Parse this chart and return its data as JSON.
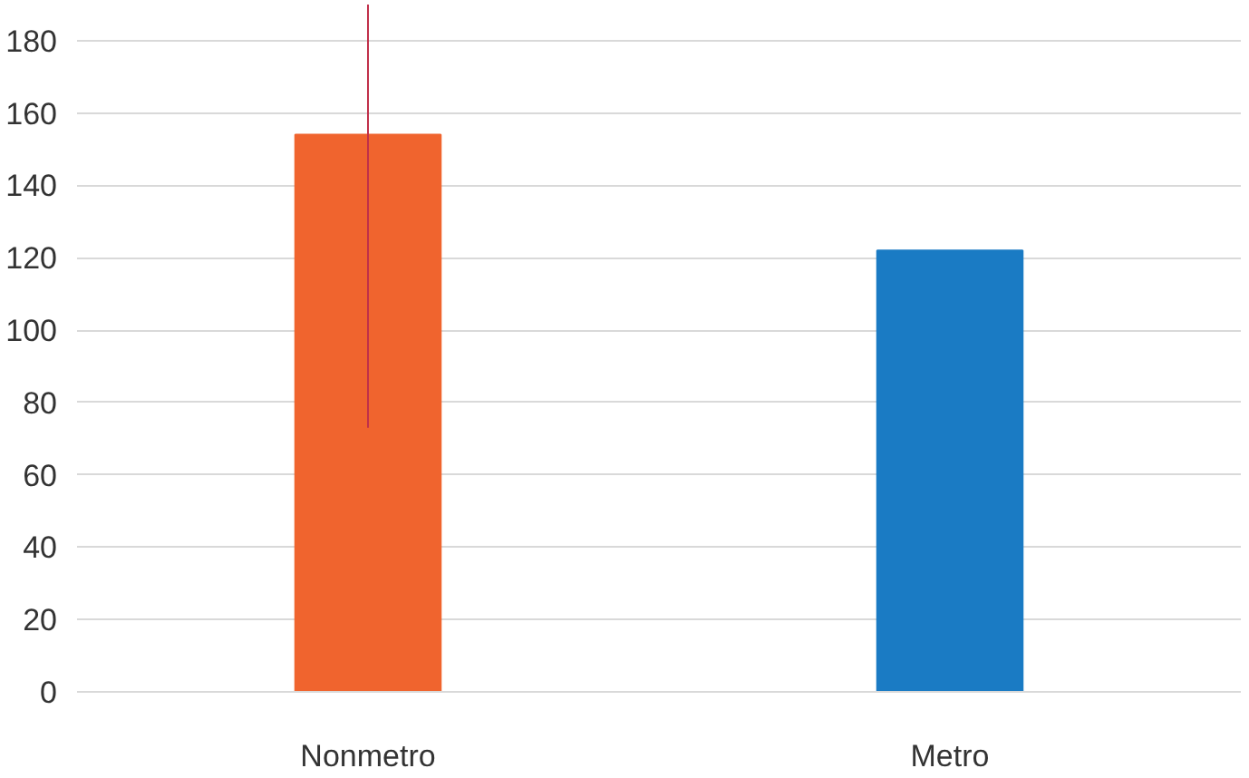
{
  "chart_data": {
    "type": "bar",
    "categories": [
      "Nonmetro",
      "Metro"
    ],
    "values": [
      154,
      122
    ],
    "colors": [
      "#f0642e",
      "#1a7bc4"
    ],
    "errors": [
      [
        73,
        190
      ],
      null
    ],
    "ylim": [
      0,
      190
    ],
    "yticks": [
      0,
      20,
      40,
      60,
      80,
      100,
      120,
      140,
      160,
      180
    ],
    "grid": "y"
  }
}
